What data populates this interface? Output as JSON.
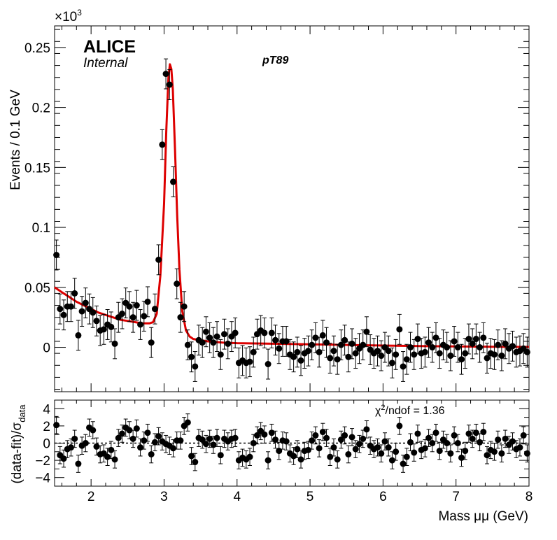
{
  "labels": {
    "experiment": "ALICE",
    "status": "Internal",
    "tag": "pT89",
    "x_axis": "Mass μμ (GeV)",
    "y_axis_top": "Events / 0.1 GeV",
    "y_exponent": "×10",
    "y_exponent_power": "3",
    "y_axis_bottom_main": "(data-fit)/σ",
    "y_axis_bottom_sub": "data",
    "chi2_prefix": "χ",
    "chi2_sup": "2",
    "chi2_suffix": "/ndof = 1.36"
  },
  "chart_data": [
    {
      "type": "scatter",
      "title": "",
      "xlabel": "Mass μμ (GeV)",
      "ylabel": "Events / 0.1 GeV",
      "y_multiplier": 1000,
      "xlim": [
        1.5,
        8.0
      ],
      "ylim": [
        -0.037,
        0.268
      ],
      "x_ticks": [
        2,
        3,
        4,
        5,
        6,
        7,
        8
      ],
      "x_tick_labels": [
        "2",
        "3",
        "4",
        "5",
        "6",
        "7",
        "8"
      ],
      "y_ticks": [
        0,
        0.05,
        0.1,
        0.15,
        0.2,
        0.25
      ],
      "y_tick_labels": [
        "0",
        "0.05",
        "0.1",
        "0.15",
        "0.2",
        "0.25"
      ],
      "grid": false,
      "data_color": "#000000",
      "fit_color": "#dd0000",
      "data_error": 0.0125,
      "x": [
        1.525,
        1.575,
        1.625,
        1.675,
        1.725,
        1.775,
        1.825,
        1.875,
        1.925,
        1.975,
        2.025,
        2.075,
        2.125,
        2.175,
        2.225,
        2.275,
        2.325,
        2.375,
        2.425,
        2.475,
        2.525,
        2.575,
        2.625,
        2.675,
        2.725,
        2.775,
        2.825,
        2.875,
        2.925,
        2.975,
        3.025,
        3.075,
        3.125,
        3.175,
        3.225,
        3.275,
        3.325,
        3.375,
        3.425,
        3.475,
        3.525,
        3.575,
        3.625,
        3.675,
        3.725,
        3.775,
        3.825,
        3.875,
        3.925,
        3.975,
        4.025,
        4.075,
        4.125,
        4.175,
        4.225,
        4.275,
        4.325,
        4.375,
        4.425,
        4.475,
        4.525,
        4.575,
        4.625,
        4.675,
        4.725,
        4.775,
        4.825,
        4.875,
        4.925,
        4.975,
        5.025,
        5.075,
        5.125,
        5.175,
        5.225,
        5.275,
        5.325,
        5.375,
        5.425,
        5.475,
        5.525,
        5.575,
        5.625,
        5.675,
        5.725,
        5.775,
        5.825,
        5.875,
        5.925,
        5.975,
        6.025,
        6.075,
        6.125,
        6.175,
        6.225,
        6.275,
        6.325,
        6.375,
        6.425,
        6.475,
        6.525,
        6.575,
        6.625,
        6.675,
        6.725,
        6.775,
        6.825,
        6.875,
        6.925,
        6.975,
        7.025,
        7.075,
        7.125,
        7.175,
        7.225,
        7.275,
        7.325,
        7.375,
        7.425,
        7.475,
        7.525,
        7.575,
        7.625,
        7.675,
        7.725,
        7.775,
        7.825,
        7.875,
        7.925,
        7.975
      ],
      "y": [
        0.077,
        0.032,
        0.027,
        0.034,
        0.034,
        0.045,
        0.01,
        0.03,
        0.037,
        0.032,
        0.029,
        0.022,
        0.014,
        0.015,
        0.019,
        0.017,
        0.003,
        0.025,
        0.028,
        0.037,
        0.034,
        0.025,
        0.035,
        0.019,
        0.026,
        0.038,
        0.004,
        0.032,
        0.073,
        0.169,
        0.228,
        0.219,
        0.138,
        0.053,
        0.025,
        0.034,
        0.002,
        -0.008,
        -0.016,
        0.006,
        0.004,
        0.013,
        0.008,
        0.004,
        0.009,
        -0.006,
        0.011,
        0.003,
        0.009,
        0.012,
        -0.013,
        -0.011,
        -0.013,
        -0.012,
        -0.004,
        0.011,
        0.014,
        0.012,
        -0.014,
        0.012,
        0.006,
        -0.001,
        0.005,
        0.005,
        -0.006,
        -0.008,
        -0.004,
        -0.011,
        -0.005,
        -0.003,
        0.002,
        0.008,
        -0.004,
        0.01,
        0.004,
        -0.009,
        -0.003,
        -0.01,
        0.002,
        0.006,
        -0.008,
        0.003,
        -0.005,
        -0.001,
        0.002,
        0.013,
        -0.002,
        -0.005,
        -0.003,
        -0.007,
        0.0,
        -0.003,
        -0.013,
        -0.006,
        0.015,
        -0.016,
        -0.01,
        0.0,
        -0.006,
        0.007,
        -0.005,
        -0.004,
        0.004,
        0.0,
        0.008,
        -0.005,
        0.002,
        0.0,
        -0.007,
        0.005,
        0.0,
        -0.01,
        -0.005,
        0.007,
        0.003,
        0.007,
        0.0,
        0.008,
        -0.009,
        -0.005,
        -0.006,
        0.002,
        -0.007,
        0.003,
        -0.001,
        0.001,
        -0.004,
        -0.003,
        -0.001,
        -0.004
      ],
      "fit_x": [
        1.5,
        1.6,
        1.7,
        1.8,
        1.9,
        2.0,
        2.1,
        2.2,
        2.3,
        2.4,
        2.5,
        2.6,
        2.7,
        2.8,
        2.85,
        2.9,
        2.95,
        3.0,
        3.03,
        3.06,
        3.08,
        3.1,
        3.12,
        3.15,
        3.18,
        3.21,
        3.25,
        3.3,
        3.35,
        3.4,
        3.5,
        3.6,
        3.8,
        4.0,
        4.5,
        5.0,
        5.5,
        6.0,
        6.5,
        7.0,
        7.5,
        8.0
      ],
      "fit_y": [
        0.05,
        0.046,
        0.042,
        0.038,
        0.035,
        0.032,
        0.029,
        0.027,
        0.025,
        0.023,
        0.022,
        0.021,
        0.02,
        0.02,
        0.021,
        0.028,
        0.06,
        0.12,
        0.18,
        0.225,
        0.236,
        0.232,
        0.215,
        0.165,
        0.11,
        0.065,
        0.03,
        0.014,
        0.009,
        0.007,
        0.006,
        0.005,
        0.004,
        0.0035,
        0.003,
        0.0025,
        0.002,
        0.0015,
        0.001,
        0.0008,
        0.0005,
        0.0003
      ]
    },
    {
      "type": "scatter",
      "title": "",
      "xlabel": "Mass μμ (GeV)",
      "ylabel": "(data-fit)/σdata",
      "xlim": [
        1.5,
        8.0
      ],
      "ylim": [
        -5.0,
        5.0
      ],
      "y_ticks": [
        -4,
        -2,
        0,
        2,
        4
      ],
      "y_tick_labels": [
        "−4",
        "−2",
        "0",
        "2",
        "4"
      ],
      "reference_line": 0,
      "data_error": 1.0,
      "x": [
        1.525,
        1.575,
        1.625,
        1.675,
        1.725,
        1.775,
        1.825,
        1.875,
        1.925,
        1.975,
        2.025,
        2.075,
        2.125,
        2.175,
        2.225,
        2.275,
        2.325,
        2.375,
        2.425,
        2.475,
        2.525,
        2.575,
        2.625,
        2.675,
        2.725,
        2.775,
        2.825,
        2.875,
        2.925,
        2.975,
        3.025,
        3.075,
        3.125,
        3.175,
        3.225,
        3.275,
        3.325,
        3.375,
        3.425,
        3.475,
        3.525,
        3.575,
        3.625,
        3.675,
        3.725,
        3.775,
        3.825,
        3.875,
        3.925,
        3.975,
        4.025,
        4.075,
        4.125,
        4.175,
        4.225,
        4.275,
        4.325,
        4.375,
        4.425,
        4.475,
        4.525,
        4.575,
        4.625,
        4.675,
        4.725,
        4.775,
        4.825,
        4.875,
        4.925,
        4.975,
        5.025,
        5.075,
        5.125,
        5.175,
        5.225,
        5.275,
        5.325,
        5.375,
        5.425,
        5.475,
        5.525,
        5.575,
        5.625,
        5.675,
        5.725,
        5.775,
        5.825,
        5.875,
        5.925,
        5.975,
        6.025,
        6.075,
        6.125,
        6.175,
        6.225,
        6.275,
        6.325,
        6.375,
        6.425,
        6.475,
        6.525,
        6.575,
        6.625,
        6.675,
        6.725,
        6.775,
        6.825,
        6.875,
        6.925,
        6.975,
        7.025,
        7.075,
        7.125,
        7.175,
        7.225,
        7.275,
        7.325,
        7.375,
        7.425,
        7.475,
        7.525,
        7.575,
        7.625,
        7.675,
        7.725,
        7.775,
        7.825,
        7.875,
        7.925,
        7.975
      ],
      "y": [
        2.1,
        -1.4,
        -1.8,
        -0.7,
        -0.5,
        0.5,
        -2.4,
        -0.3,
        0.0,
        1.8,
        1.5,
        -0.4,
        -1.3,
        -1.2,
        -1.6,
        -0.8,
        -1.9,
        0.6,
        1.1,
        1.8,
        1.5,
        0.5,
        1.7,
        -0.5,
        0.3,
        1.2,
        -1.3,
        0.1,
        0.8,
        0.2,
        -0.1,
        -0.3,
        -0.6,
        0.3,
        0.3,
        2.0,
        2.4,
        -1.5,
        -2.2,
        0.6,
        0.4,
        -0.1,
        0.5,
        -0.2,
        0.6,
        -1.4,
        0.5,
        0.2,
        0.5,
        0.6,
        -2.0,
        -1.7,
        -1.9,
        -1.6,
        0.0,
        0.9,
        1.4,
        1.0,
        -2.0,
        1.2,
        0.4,
        -0.9,
        0.3,
        0.2,
        -1.2,
        -1.5,
        -0.7,
        -1.9,
        -0.9,
        -0.8,
        0.3,
        0.9,
        -0.6,
        1.3,
        0.6,
        -1.6,
        -0.5,
        -1.9,
        0.4,
        0.9,
        -1.3,
        0.7,
        -0.7,
        -0.1,
        0.5,
        1.6,
        -0.3,
        -0.7,
        -0.5,
        -1.2,
        0.2,
        -0.5,
        -2.0,
        -1.0,
        2.0,
        -2.4,
        -1.6,
        0.1,
        -1.1,
        1.1,
        -0.8,
        -0.6,
        0.6,
        0.0,
        1.2,
        -0.9,
        0.4,
        0.0,
        -1.2,
        0.9,
        0.0,
        -1.7,
        -0.9,
        1.1,
        0.5,
        1.2,
        0.1,
        1.3,
        -1.4,
        -0.8,
        -1.0,
        0.4,
        -1.2,
        0.5,
        -0.2,
        0.2,
        -0.7,
        -0.5,
        0.9,
        -1.2
      ]
    }
  ]
}
